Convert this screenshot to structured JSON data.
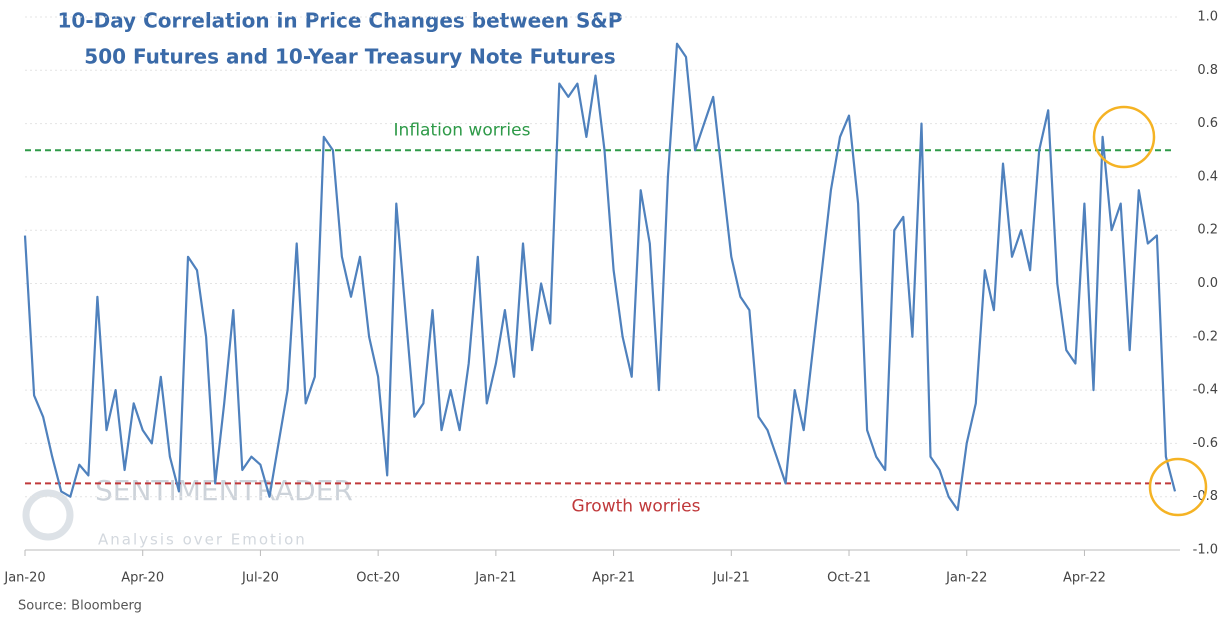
{
  "chart_data": {
    "type": "line",
    "title": [
      "10-Day Correlation in Price Changes between S&P",
      "500 Futures and 10-Year Treasury Note Futures"
    ],
    "source": "Source: Bloomberg",
    "watermark": [
      "SENTIMENTRADER",
      "Analysis over Emotion"
    ],
    "categories": [
      "Jan-20",
      null,
      null,
      null,
      null,
      null,
      null,
      null,
      null,
      null,
      null,
      null,
      null,
      "Apr-20",
      null,
      null,
      null,
      null,
      null,
      null,
      null,
      null,
      null,
      null,
      null,
      null,
      "Jul-20",
      null,
      null,
      null,
      null,
      null,
      null,
      null,
      null,
      null,
      null,
      null,
      null,
      "Oct-20",
      null,
      null,
      null,
      null,
      null,
      null,
      null,
      null,
      null,
      null,
      null,
      null,
      "Jan-21",
      null,
      null,
      null,
      null,
      null,
      null,
      null,
      null,
      null,
      null,
      null,
      null,
      "Apr-21",
      null,
      null,
      null,
      null,
      null,
      null,
      null,
      null,
      null,
      null,
      null,
      null,
      "Jul-21",
      null,
      null,
      null,
      null,
      null,
      null,
      null,
      null,
      null,
      null,
      null,
      null,
      "Oct-21",
      null,
      null,
      null,
      null,
      null,
      null,
      null,
      null,
      null,
      null,
      null,
      null,
      "Jan-22",
      null,
      null,
      null,
      null,
      null,
      null,
      null,
      null,
      null,
      null,
      null,
      null,
      "Apr-22",
      null,
      null,
      null,
      null,
      null,
      null,
      null,
      null,
      null,
      null
    ],
    "values": [
      0.18,
      -0.42,
      -0.5,
      -0.65,
      -0.78,
      -0.8,
      -0.68,
      -0.72,
      -0.05,
      -0.55,
      -0.4,
      -0.7,
      -0.45,
      -0.55,
      -0.6,
      -0.35,
      -0.65,
      -0.78,
      0.1,
      0.05,
      -0.2,
      -0.75,
      -0.45,
      -0.1,
      -0.7,
      -0.65,
      -0.68,
      -0.8,
      -0.6,
      -0.4,
      0.15,
      -0.45,
      -0.35,
      0.55,
      0.5,
      0.1,
      -0.05,
      0.1,
      -0.2,
      -0.35,
      -0.72,
      0.3,
      -0.1,
      -0.5,
      -0.45,
      -0.1,
      -0.55,
      -0.4,
      -0.55,
      -0.3,
      0.1,
      -0.45,
      -0.3,
      -0.1,
      -0.35,
      0.15,
      -0.25,
      0.0,
      -0.15,
      0.75,
      0.7,
      0.75,
      0.55,
      0.78,
      0.5,
      0.05,
      -0.2,
      -0.35,
      0.35,
      0.15,
      -0.4,
      0.4,
      0.9,
      0.85,
      0.5,
      0.6,
      0.7,
      0.4,
      0.1,
      -0.05,
      -0.1,
      -0.5,
      -0.55,
      -0.65,
      -0.75,
      -0.4,
      -0.55,
      -0.25,
      0.05,
      0.35,
      0.55,
      0.63,
      0.3,
      -0.55,
      -0.65,
      -0.7,
      0.2,
      0.25,
      -0.2,
      0.6,
      -0.65,
      -0.7,
      -0.8,
      -0.85,
      -0.6,
      -0.45,
      0.05,
      -0.1,
      0.45,
      0.1,
      0.2,
      0.05,
      0.5,
      0.65,
      0.0,
      -0.25,
      -0.3,
      0.3,
      -0.4,
      0.55,
      0.2,
      0.3,
      -0.25,
      0.35,
      0.15,
      0.18,
      -0.65,
      -0.78
    ],
    "color": "#4f81bd",
    "ylim": [
      -1,
      1
    ],
    "yticks": [
      {
        "value": 1,
        "label": "1.0"
      },
      0.8,
      0.6,
      0.4,
      0.2,
      {
        "value": 0,
        "label": "0.0"
      },
      -0.2,
      -0.4,
      -0.6,
      -0.8,
      {
        "value": -1,
        "label": "-1.0"
      }
    ],
    "grid": true,
    "reference_lines": [
      {
        "value": 0.5,
        "label": "Inflation worries",
        "color": "#2e9a48"
      },
      {
        "value": -0.75,
        "label": "Growth worries",
        "color": "#c0393b"
      }
    ]
  }
}
